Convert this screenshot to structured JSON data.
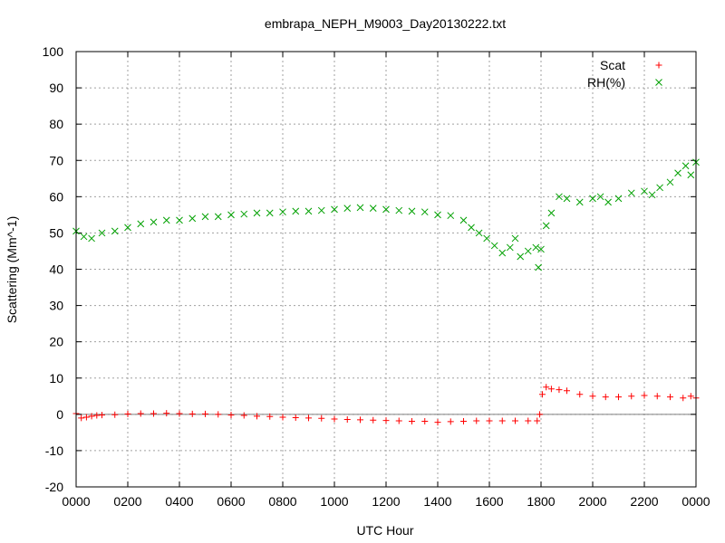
{
  "chart_data": {
    "type": "scatter",
    "title": "embrapa_NEPH_M9003_Day20130222.txt",
    "xlabel": "UTC Hour",
    "ylabel": "Scattering (Mm^-1)",
    "xlim": [
      0,
      24
    ],
    "ylim": [
      -20,
      100
    ],
    "x_ticks": [
      0,
      2,
      4,
      6,
      8,
      10,
      12,
      14,
      16,
      18,
      20,
      22,
      24
    ],
    "x_tick_labels": [
      "0000",
      "0200",
      "0400",
      "0600",
      "0800",
      "1000",
      "1200",
      "1400",
      "1600",
      "1800",
      "2000",
      "2200",
      "0000"
    ],
    "y_ticks": [
      -20,
      -10,
      0,
      10,
      20,
      30,
      40,
      50,
      60,
      70,
      80,
      90,
      100
    ],
    "y_tick_labels": [
      "-20",
      "-10",
      "0",
      "10",
      "20",
      "30",
      "40",
      "50",
      "60",
      "70",
      "80",
      "90",
      "100"
    ],
    "grid": true,
    "zero_line": true,
    "legend": "top-right",
    "series": [
      {
        "name": "Scat",
        "marker": "+",
        "color": "#ff0000",
        "x": [
          0.0,
          0.2,
          0.4,
          0.6,
          0.8,
          1.0,
          1.5,
          2.0,
          2.5,
          3.0,
          3.5,
          4.0,
          4.5,
          5.0,
          5.5,
          6.0,
          6.5,
          7.0,
          7.5,
          8.0,
          8.5,
          9.0,
          9.5,
          10.0,
          10.5,
          11.0,
          11.5,
          12.0,
          12.5,
          13.0,
          13.5,
          14.0,
          14.5,
          15.0,
          15.5,
          16.0,
          16.5,
          17.0,
          17.5,
          17.85,
          17.95,
          18.05,
          18.2,
          18.4,
          18.7,
          19.0,
          19.5,
          20.0,
          20.5,
          21.0,
          21.5,
          22.0,
          22.5,
          23.0,
          23.5,
          23.8,
          24.0
        ],
        "y": [
          0.2,
          -1.0,
          -0.8,
          -0.5,
          -0.3,
          -0.2,
          -0.1,
          0.1,
          0.2,
          0.2,
          0.3,
          0.2,
          0.1,
          0.1,
          0.0,
          -0.2,
          -0.3,
          -0.5,
          -0.6,
          -0.8,
          -0.9,
          -1.0,
          -1.1,
          -1.3,
          -1.4,
          -1.5,
          -1.6,
          -1.7,
          -1.8,
          -1.9,
          -1.9,
          -2.2,
          -2.0,
          -1.9,
          -1.8,
          -1.8,
          -1.8,
          -1.8,
          -1.8,
          -1.8,
          0.0,
          5.5,
          7.5,
          7.0,
          6.8,
          6.5,
          5.5,
          5.0,
          4.8,
          4.8,
          5.0,
          5.2,
          5.0,
          4.8,
          4.5,
          5.0,
          4.5
        ]
      },
      {
        "name": "RH(%)",
        "marker": "x",
        "color": "#00a000",
        "x": [
          0.0,
          0.3,
          0.6,
          1.0,
          1.5,
          2.0,
          2.5,
          3.0,
          3.5,
          4.0,
          4.5,
          5.0,
          5.5,
          6.0,
          6.5,
          7.0,
          7.5,
          8.0,
          8.5,
          9.0,
          9.5,
          10.0,
          10.5,
          11.0,
          11.5,
          12.0,
          12.5,
          13.0,
          13.5,
          14.0,
          14.5,
          15.0,
          15.3,
          15.6,
          15.9,
          16.2,
          16.5,
          16.8,
          17.0,
          17.2,
          17.5,
          17.8,
          17.9,
          18.0,
          18.2,
          18.4,
          18.7,
          19.0,
          19.5,
          20.0,
          20.3,
          20.6,
          21.0,
          21.5,
          22.0,
          22.3,
          22.6,
          23.0,
          23.3,
          23.6,
          23.8,
          24.0
        ],
        "y": [
          50.5,
          49.0,
          48.5,
          50.0,
          50.5,
          51.5,
          52.5,
          53.0,
          53.5,
          53.5,
          54.0,
          54.5,
          54.5,
          55.0,
          55.2,
          55.5,
          55.5,
          55.8,
          56.0,
          56.0,
          56.2,
          56.5,
          56.8,
          57.0,
          56.8,
          56.5,
          56.2,
          56.0,
          55.8,
          55.0,
          54.8,
          53.5,
          51.5,
          50.0,
          48.5,
          46.5,
          44.5,
          46.0,
          48.5,
          43.5,
          45.0,
          46.0,
          40.5,
          45.5,
          52.0,
          55.5,
          60.0,
          59.5,
          58.5,
          59.5,
          60.0,
          58.5,
          59.5,
          61.0,
          61.5,
          60.5,
          62.5,
          64.0,
          66.5,
          68.5,
          66.0,
          69.5
        ]
      }
    ]
  }
}
